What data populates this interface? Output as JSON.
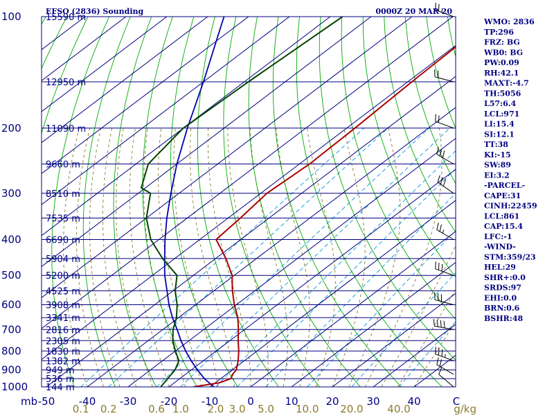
{
  "header": {
    "title": "EFSO (2836) Sounding",
    "datetime": "0000Z 20 MAR 20"
  },
  "chart_data": {
    "type": "skew-t log-p sounding",
    "pressure_axis": {
      "unit_label": "mb",
      "levels": [
        100,
        200,
        300,
        400,
        500,
        600,
        700,
        800,
        900,
        1000
      ],
      "range": [
        1000,
        100
      ],
      "scale": "log"
    },
    "height_labels": [
      {
        "p": 100,
        "label": "15590 m"
      },
      {
        "p": 150,
        "label": "12950 m"
      },
      {
        "p": 200,
        "label": "11090 m"
      },
      {
        "p": 250,
        "label": "9660 m"
      },
      {
        "p": 300,
        "label": "8510 m"
      },
      {
        "p": 350,
        "label": "7535 m"
      },
      {
        "p": 400,
        "label": "6690 m"
      },
      {
        "p": 450,
        "label": "5904 m"
      },
      {
        "p": 500,
        "label": "5200 m"
      },
      {
        "p": 550,
        "label": "4525 m"
      },
      {
        "p": 600,
        "label": "3908 m"
      },
      {
        "p": 650,
        "label": "3341 m"
      },
      {
        "p": 700,
        "label": "2816 m"
      },
      {
        "p": 750,
        "label": "2305 m"
      },
      {
        "p": 800,
        "label": "1830 m"
      },
      {
        "p": 850,
        "label": "1382 m"
      },
      {
        "p": 900,
        "label": "949 m"
      },
      {
        "p": 950,
        "label": "536 m"
      },
      {
        "p": 1000,
        "label": "144 m"
      }
    ],
    "temperature_axis": {
      "unit": "C",
      "ticks": [
        -50,
        -40,
        -30,
        -20,
        -10,
        0,
        10,
        20,
        30,
        40
      ],
      "tick_labels": [
        "-50",
        "-40",
        "-30",
        "-20",
        "-10",
        "0",
        "10",
        "20",
        "30",
        "40"
      ],
      "trailing_label": "C"
    },
    "mixing_ratio_axis": {
      "unit_label": "g/kg",
      "values": [
        0.1,
        0.2,
        0.6,
        1.0,
        2.0,
        3.0,
        5.0,
        10.0,
        20.0,
        40.0
      ],
      "labels": [
        "0.1",
        "0.2",
        "0.6",
        "1.0",
        "2.0",
        "3.0",
        "5.0",
        "10.0",
        "20.0",
        "40.0"
      ]
    },
    "temperature_profile": [
      {
        "p": 1000,
        "t": -14.0
      },
      {
        "p": 975,
        "t": -9.0
      },
      {
        "p": 950,
        "t": -7.5
      },
      {
        "p": 925,
        "t": -8.5
      },
      {
        "p": 900,
        "t": -9.0
      },
      {
        "p": 850,
        "t": -11.5
      },
      {
        "p": 800,
        "t": -14.5
      },
      {
        "p": 750,
        "t": -18.0
      },
      {
        "p": 700,
        "t": -21.5
      },
      {
        "p": 650,
        "t": -25.5
      },
      {
        "p": 600,
        "t": -30.5
      },
      {
        "p": 550,
        "t": -35.5
      },
      {
        "p": 500,
        "t": -40.5
      },
      {
        "p": 450,
        "t": -47.5
      },
      {
        "p": 400,
        "t": -56.0
      },
      {
        "p": 350,
        "t": -57.0
      },
      {
        "p": 300,
        "t": -58.5
      },
      {
        "p": 250,
        "t": -57.5
      },
      {
        "p": 200,
        "t": -58.0
      },
      {
        "p": 150,
        "t": -59.0
      },
      {
        "p": 100,
        "t": -60.0
      }
    ],
    "dewpoint_profile": [
      {
        "p": 1000,
        "t": -22.0
      },
      {
        "p": 950,
        "t": -23.0
      },
      {
        "p": 900,
        "t": -24.0
      },
      {
        "p": 850,
        "t": -26.0
      },
      {
        "p": 800,
        "t": -30.0
      },
      {
        "p": 750,
        "t": -34.0
      },
      {
        "p": 700,
        "t": -37.5
      },
      {
        "p": 650,
        "t": -40.5
      },
      {
        "p": 600,
        "t": -44.5
      },
      {
        "p": 550,
        "t": -49.5
      },
      {
        "p": 500,
        "t": -54.0
      },
      {
        "p": 450,
        "t": -63.0
      },
      {
        "p": 400,
        "t": -72.0
      },
      {
        "p": 350,
        "t": -80.0
      },
      {
        "p": 300,
        "t": -87.0
      },
      {
        "p": 290,
        "t": -91.0
      },
      {
        "p": 250,
        "t": -97.0
      },
      {
        "p": 200,
        "t": -100.0
      },
      {
        "p": 150,
        "t": -99.0
      },
      {
        "p": 100,
        "t": -97.0
      }
    ],
    "parcel_profile": [
      {
        "p": 1000,
        "t": -9.0
      },
      {
        "p": 950,
        "t": -14.0
      },
      {
        "p": 900,
        "t": -18.5
      },
      {
        "p": 850,
        "t": -23.0
      },
      {
        "p": 800,
        "t": -27.5
      },
      {
        "p": 750,
        "t": -32.0
      },
      {
        "p": 700,
        "t": -36.5
      },
      {
        "p": 650,
        "t": -41.5
      },
      {
        "p": 600,
        "t": -46.5
      },
      {
        "p": 550,
        "t": -51.5
      },
      {
        "p": 500,
        "t": -57.0
      },
      {
        "p": 450,
        "t": -62.5
      },
      {
        "p": 400,
        "t": -68.5
      },
      {
        "p": 350,
        "t": -75.0
      },
      {
        "p": 300,
        "t": -82.0
      },
      {
        "p": 250,
        "t": -90.0
      },
      {
        "p": 200,
        "t": -99.0
      },
      {
        "p": 150,
        "t": -110.0
      },
      {
        "p": 100,
        "t": -126.0
      }
    ],
    "wind_barbs": [
      {
        "p": 1000,
        "dir": 310,
        "kt": 10
      },
      {
        "p": 925,
        "dir": 300,
        "kt": 20
      },
      {
        "p": 850,
        "dir": 290,
        "kt": 35
      },
      {
        "p": 700,
        "dir": 280,
        "kt": 40
      },
      {
        "p": 600,
        "dir": 285,
        "kt": 30
      },
      {
        "p": 500,
        "dir": 290,
        "kt": 30
      },
      {
        "p": 400,
        "dir": 300,
        "kt": 25
      },
      {
        "p": 300,
        "dir": 305,
        "kt": 30
      },
      {
        "p": 250,
        "dir": 300,
        "kt": 30
      },
      {
        "p": 200,
        "dir": 290,
        "kt": 20
      },
      {
        "p": 150,
        "dir": 285,
        "kt": 20
      },
      {
        "p": 100,
        "dir": 290,
        "kt": 25
      }
    ],
    "colors": {
      "frame": "#000080",
      "isobar": "#000080",
      "isotherm": "#000080",
      "dry_adiabat": "#00aa00",
      "moist_adiabat": "#8a7a2a",
      "mixing_ratio": "#1aa0e0",
      "temperature": "#aa0000",
      "dewpoint": "#004400",
      "parcel": "#0000aa",
      "wind": "#000000",
      "mixing_label": "#8a7a2a"
    }
  },
  "indices": [
    "WMO: 2836",
    "TP:296",
    "FRZ: BG",
    "WB0: BG",
    "PW:0.09",
    "RH:42.1",
    "MAXT:-4.7",
    "TH:5056",
    "L57:6.4",
    "LCL:971",
    "LI:15.4",
    "SI:12.1",
    "TT:38",
    "KI:-15",
    "SW:89",
    "EI:3.2",
    "-PARCEL-",
    "CAPE:31",
    "CINH:22459",
    "LCL:861",
    "CAP:15.4",
    "LFC:-1",
    "-WIND-",
    "STM:359/23",
    "HEL:29",
    "SHR+:0.0",
    "SRDS:97",
    "EHI:0.0",
    "BRN:0.6",
    "BSHR:48"
  ]
}
